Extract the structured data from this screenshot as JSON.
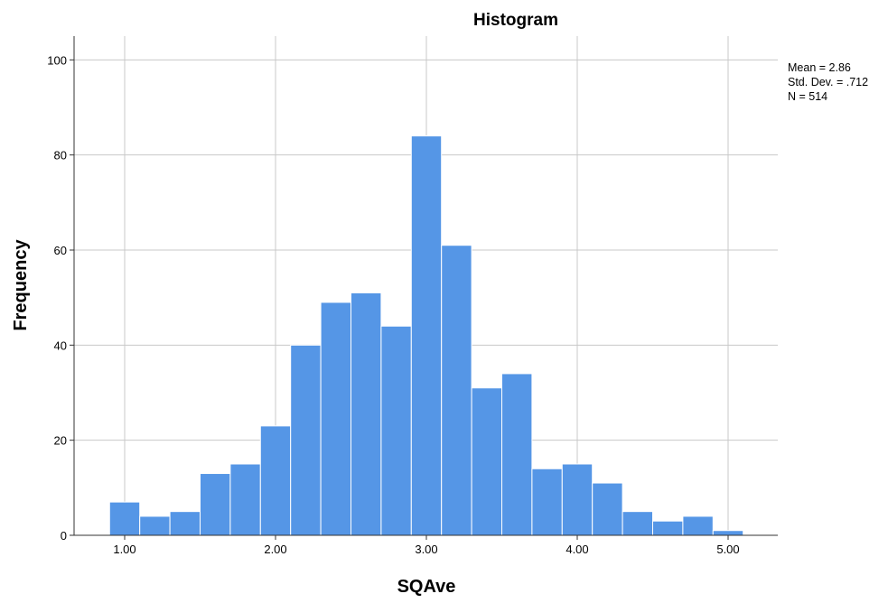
{
  "chart_data": {
    "type": "bar",
    "title": "Histogram",
    "xlabel": "SQAve",
    "ylabel": "Frequency",
    "xlim": [
      0.7,
      5.3
    ],
    "ylim": [
      0,
      105
    ],
    "grid": true,
    "bar_color": "#5596e6",
    "x_ticks": [
      {
        "value": 1.0,
        "label": "1.00"
      },
      {
        "value": 2.0,
        "label": "2.00"
      },
      {
        "value": 3.0,
        "label": "3.00"
      },
      {
        "value": 4.0,
        "label": "4.00"
      },
      {
        "value": 5.0,
        "label": "5.00"
      }
    ],
    "y_ticks": [
      {
        "value": 0,
        "label": "0"
      },
      {
        "value": 20,
        "label": "20"
      },
      {
        "value": 40,
        "label": "40"
      },
      {
        "value": 60,
        "label": "60"
      },
      {
        "value": 80,
        "label": "80"
      },
      {
        "value": 100,
        "label": "100"
      }
    ],
    "bins": [
      {
        "start": 0.9,
        "end": 1.1,
        "value": 7
      },
      {
        "start": 1.1,
        "end": 1.3,
        "value": 4
      },
      {
        "start": 1.3,
        "end": 1.5,
        "value": 5
      },
      {
        "start": 1.5,
        "end": 1.7,
        "value": 13
      },
      {
        "start": 1.7,
        "end": 1.9,
        "value": 15
      },
      {
        "start": 1.9,
        "end": 2.1,
        "value": 23
      },
      {
        "start": 2.1,
        "end": 2.3,
        "value": 40
      },
      {
        "start": 2.3,
        "end": 2.5,
        "value": 49
      },
      {
        "start": 2.5,
        "end": 2.7,
        "value": 51
      },
      {
        "start": 2.7,
        "end": 2.9,
        "value": 44
      },
      {
        "start": 2.9,
        "end": 3.1,
        "value": 84
      },
      {
        "start": 3.1,
        "end": 3.3,
        "value": 61
      },
      {
        "start": 3.3,
        "end": 3.5,
        "value": 31
      },
      {
        "start": 3.5,
        "end": 3.7,
        "value": 34
      },
      {
        "start": 3.7,
        "end": 3.9,
        "value": 14
      },
      {
        "start": 3.9,
        "end": 4.1,
        "value": 15
      },
      {
        "start": 4.1,
        "end": 4.3,
        "value": 11
      },
      {
        "start": 4.3,
        "end": 4.5,
        "value": 5
      },
      {
        "start": 4.5,
        "end": 4.7,
        "value": 3
      },
      {
        "start": 4.7,
        "end": 4.9,
        "value": 4
      },
      {
        "start": 4.9,
        "end": 5.1,
        "value": 1
      }
    ],
    "stats": {
      "mean": "Mean = 2.86",
      "std_dev": "Std. Dev. = .712",
      "n": "N = 514"
    }
  }
}
